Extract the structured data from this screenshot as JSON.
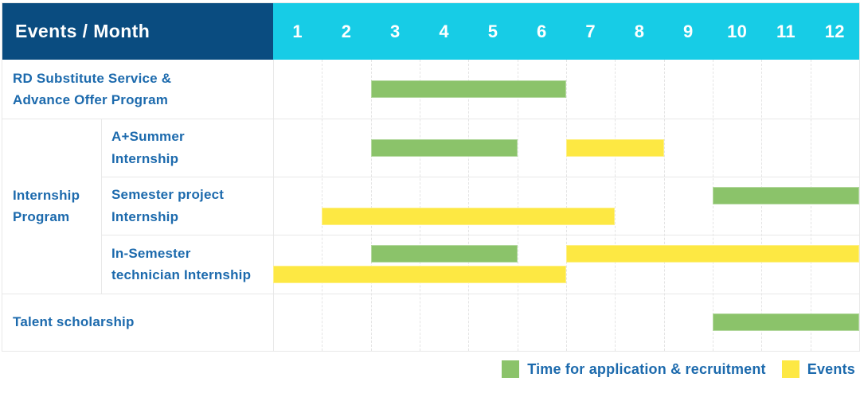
{
  "header": {
    "title": "Events / Month"
  },
  "colors": {
    "header_navy": "#0a4c80",
    "header_cyan": "#17cce6",
    "application_green": "#8bc36a",
    "events_yellow": "#fde843",
    "label_blue": "#1c6aad",
    "grid_border": "#e8e8e8"
  },
  "legend": {
    "items": [
      {
        "series": "application",
        "label": "Time for application & recruitment",
        "color": "#8bc36a"
      },
      {
        "series": "events",
        "label": "Events",
        "color": "#fde843"
      }
    ]
  },
  "chart_data": {
    "type": "bar",
    "subtype": "gantt_timeline",
    "title": "Events / Month",
    "x": {
      "label": "Month",
      "ticks": [
        "1",
        "2",
        "3",
        "4",
        "5",
        "6",
        "7",
        "8",
        "9",
        "10",
        "11",
        "12"
      ],
      "range": [
        1,
        12
      ]
    },
    "grid": true,
    "legend_position": "bottom-right",
    "group_label": "Internship Program",
    "rows": [
      {
        "group": "",
        "label": "RD Substitute Service &\nAdvance Offer Program",
        "lanes": 1,
        "bars": [
          {
            "series": "application",
            "color": "#8bc36a",
            "start_month": 3,
            "end_month": 6,
            "lane": 0
          }
        ]
      },
      {
        "group": "Internship Program",
        "label": "A+Summer\nInternship",
        "lanes": 1,
        "bars": [
          {
            "series": "application",
            "color": "#8bc36a",
            "start_month": 3,
            "end_month": 5,
            "lane": 0
          },
          {
            "series": "events",
            "color": "#fde843",
            "start_month": 7,
            "end_month": 8,
            "lane": 0
          }
        ]
      },
      {
        "group": "Internship Program",
        "label": "Semester project\nInternship",
        "lanes": 2,
        "bars": [
          {
            "series": "application",
            "color": "#8bc36a",
            "start_month": 10,
            "end_month": 12,
            "lane": 0
          },
          {
            "series": "events",
            "color": "#fde843",
            "start_month": 2,
            "end_month": 7,
            "lane": 1
          }
        ]
      },
      {
        "group": "Internship Program",
        "label": "In-Semester\ntechnician Internship",
        "lanes": 2,
        "bars": [
          {
            "series": "application",
            "color": "#8bc36a",
            "start_month": 3,
            "end_month": 5,
            "lane": 0
          },
          {
            "series": "events",
            "color": "#fde843",
            "start_month": 7,
            "end_month": 12,
            "lane": 0
          },
          {
            "series": "events",
            "color": "#fde843",
            "start_month": 1,
            "end_month": 6,
            "lane": 1
          }
        ]
      },
      {
        "group": "",
        "label": "Talent scholarship",
        "lanes": 1,
        "bars": [
          {
            "series": "application",
            "color": "#8bc36a",
            "start_month": 10,
            "end_month": 12,
            "lane": 0
          }
        ]
      }
    ]
  }
}
